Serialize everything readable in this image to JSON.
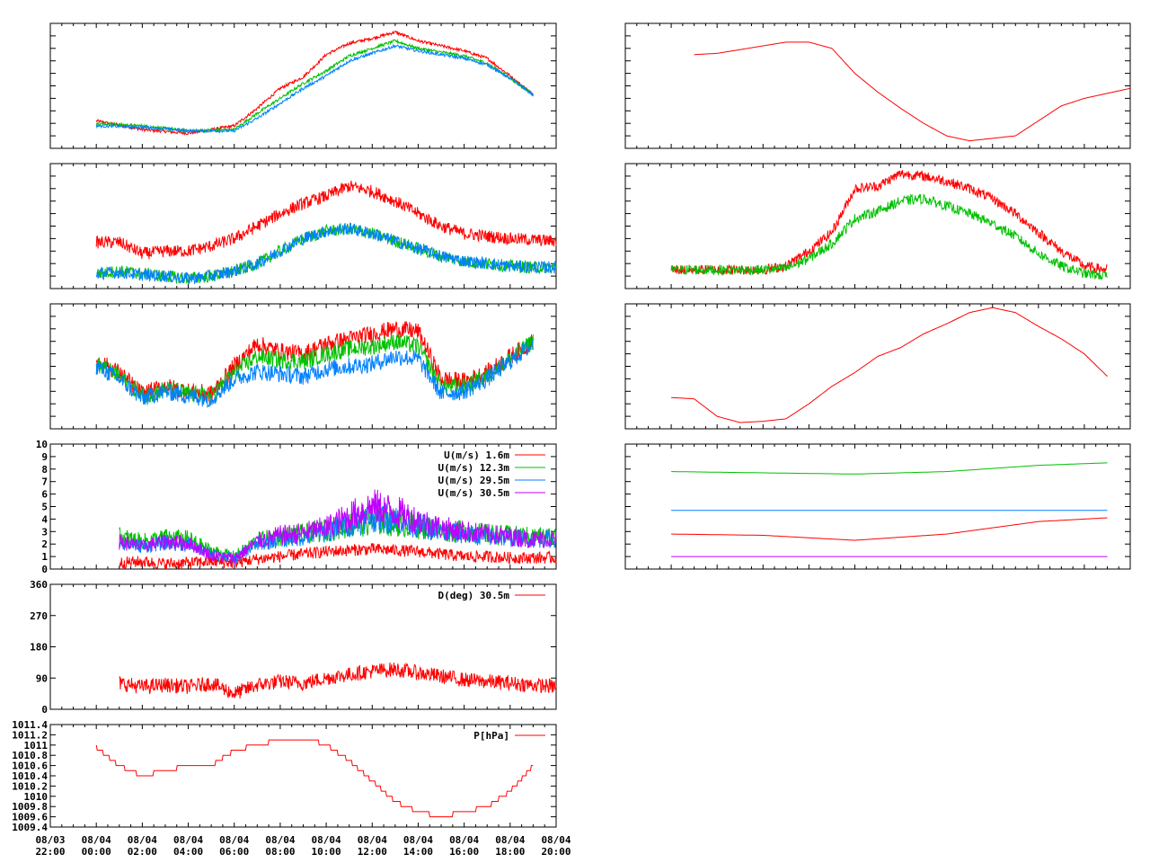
{
  "colors": {
    "red": "#ff0000",
    "green": "#00c000",
    "blue": "#0080ff",
    "purple": "#c000ff",
    "frame": "#000000",
    "background": "#ffffff"
  },
  "x_axis": {
    "type": "time",
    "start": "08/03 22:00",
    "end": "08/04 20:00",
    "tick_labels": [
      [
        "08/03",
        "22:00"
      ],
      [
        "08/04",
        "00:00"
      ],
      [
        "08/04",
        "02:00"
      ],
      [
        "08/04",
        "04:00"
      ],
      [
        "08/04",
        "06:00"
      ],
      [
        "08/04",
        "08:00"
      ],
      [
        "08/04",
        "10:00"
      ],
      [
        "08/04",
        "12:00"
      ],
      [
        "08/04",
        "14:00"
      ],
      [
        "08/04",
        "16:00"
      ],
      [
        "08/04",
        "18:00"
      ],
      [
        "08/04",
        "20:00"
      ]
    ]
  },
  "chart_data": [
    {
      "id": "left-1",
      "type": "line",
      "x_hours": [
        0,
        2,
        4,
        6,
        7,
        8,
        9,
        10,
        11,
        12,
        13,
        14,
        15,
        16,
        17,
        18,
        19
      ],
      "series": [
        {
          "color": "#ff0000",
          "values": [
            0.22,
            0.15,
            0.12,
            0.18,
            0.32,
            0.48,
            0.57,
            0.75,
            0.84,
            0.88,
            0.93,
            0.86,
            0.82,
            0.78,
            0.72,
            0.58,
            0.43
          ]
        },
        {
          "color": "#00c000",
          "values": [
            0.2,
            0.18,
            0.14,
            0.15,
            0.28,
            0.4,
            0.52,
            0.62,
            0.74,
            0.8,
            0.86,
            0.8,
            0.77,
            0.74,
            0.68,
            0.56,
            0.43
          ]
        },
        {
          "color": "#0080ff",
          "values": [
            0.18,
            0.17,
            0.14,
            0.14,
            0.24,
            0.36,
            0.48,
            0.58,
            0.7,
            0.76,
            0.82,
            0.78,
            0.75,
            0.72,
            0.67,
            0.56,
            0.43
          ]
        }
      ]
    },
    {
      "id": "left-2",
      "type": "line",
      "x_hours": [
        0,
        1,
        2,
        3,
        4,
        5,
        6,
        7,
        8,
        9,
        10,
        11,
        12,
        13,
        14,
        15,
        16,
        17,
        18,
        19,
        20
      ],
      "series": [
        {
          "color": "#ff0000",
          "values": [
            0.37,
            0.37,
            0.28,
            0.3,
            0.3,
            0.34,
            0.4,
            0.5,
            0.6,
            0.68,
            0.74,
            0.82,
            0.78,
            0.7,
            0.6,
            0.5,
            0.44,
            0.42,
            0.4,
            0.39,
            0.38
          ]
        },
        {
          "color": "#00c000",
          "values": [
            0.12,
            0.14,
            0.12,
            0.1,
            0.08,
            0.1,
            0.14,
            0.2,
            0.3,
            0.4,
            0.46,
            0.48,
            0.44,
            0.38,
            0.32,
            0.26,
            0.22,
            0.2,
            0.18,
            0.17,
            0.17
          ]
        },
        {
          "color": "#0080ff",
          "values": [
            0.12,
            0.13,
            0.11,
            0.1,
            0.08,
            0.1,
            0.14,
            0.2,
            0.3,
            0.4,
            0.46,
            0.48,
            0.44,
            0.38,
            0.32,
            0.26,
            0.22,
            0.2,
            0.18,
            0.17,
            0.17
          ]
        }
      ]
    },
    {
      "id": "left-3",
      "type": "line",
      "x_hours": [
        0,
        1,
        2,
        3,
        4,
        5,
        6,
        7,
        8,
        9,
        10,
        11,
        12,
        13,
        14,
        15,
        16,
        17,
        18,
        19
      ],
      "series": [
        {
          "color": "#ff0000",
          "values": [
            0.55,
            0.45,
            0.28,
            0.34,
            0.3,
            0.28,
            0.5,
            0.68,
            0.62,
            0.6,
            0.68,
            0.72,
            0.76,
            0.8,
            0.78,
            0.4,
            0.38,
            0.45,
            0.58,
            0.7
          ]
        },
        {
          "color": "#00c000",
          "values": [
            0.52,
            0.42,
            0.26,
            0.32,
            0.28,
            0.26,
            0.45,
            0.58,
            0.55,
            0.54,
            0.6,
            0.64,
            0.66,
            0.7,
            0.66,
            0.34,
            0.34,
            0.42,
            0.56,
            0.7
          ]
        },
        {
          "color": "#0080ff",
          "values": [
            0.5,
            0.4,
            0.24,
            0.3,
            0.26,
            0.24,
            0.4,
            0.46,
            0.44,
            0.42,
            0.48,
            0.5,
            0.52,
            0.58,
            0.56,
            0.28,
            0.3,
            0.4,
            0.54,
            0.68
          ]
        }
      ]
    },
    {
      "id": "left-4",
      "type": "line",
      "ylim": [
        0,
        10
      ],
      "y_ticks": [
        "0",
        "1",
        "2",
        "3",
        "4",
        "5",
        "6",
        "7",
        "8",
        "9",
        "10"
      ],
      "legend_position": "top-right",
      "x_hours": [
        1,
        2,
        3,
        4,
        5,
        6,
        7,
        8,
        9,
        10,
        11,
        12,
        13,
        14,
        15,
        16,
        17,
        18,
        19,
        20
      ],
      "series": [
        {
          "name": "U(m/s)  1.6m",
          "color": "#ff0000",
          "values": [
            0.5,
            0.6,
            0.4,
            0.5,
            0.6,
            0.5,
            0.8,
            1.0,
            1.2,
            1.4,
            1.5,
            1.6,
            1.5,
            1.4,
            1.2,
            1.0,
            1.0,
            0.9,
            0.9,
            0.9
          ]
        },
        {
          "name": "U(m/s) 12.3m",
          "color": "#00c000",
          "values": [
            2.6,
            2.2,
            2.5,
            2.4,
            1.5,
            1.0,
            2.3,
            2.6,
            2.8,
            3.1,
            3.5,
            3.8,
            3.7,
            3.4,
            3.1,
            3.0,
            2.8,
            2.7,
            2.6,
            2.6
          ]
        },
        {
          "name": "U(m/s) 29.5m",
          "color": "#0080ff",
          "values": [
            2.2,
            1.8,
            2.1,
            2.0,
            1.2,
            0.8,
            2.0,
            2.4,
            2.6,
            3.0,
            3.6,
            4.2,
            4.0,
            3.5,
            3.0,
            2.8,
            2.6,
            2.5,
            2.4,
            2.4
          ]
        },
        {
          "name": "U(m/s) 30.5m",
          "color": "#c000ff",
          "values": [
            2.2,
            1.8,
            2.2,
            2.1,
            1.1,
            0.8,
            2.2,
            2.7,
            2.9,
            3.3,
            4.2,
            5.0,
            4.6,
            3.9,
            3.3,
            3.0,
            2.8,
            2.6,
            2.4,
            2.4
          ]
        }
      ]
    },
    {
      "id": "left-5",
      "type": "line",
      "ylim": [
        0,
        360
      ],
      "y_ticks": [
        "0",
        "90",
        "180",
        "270",
        "360"
      ],
      "legend_position": "top-right",
      "x_hours": [
        1,
        2,
        3,
        4,
        5,
        6,
        7,
        8,
        9,
        10,
        11,
        12,
        13,
        14,
        15,
        16,
        17,
        18,
        19,
        20
      ],
      "series": [
        {
          "name": "D(deg)  30.5m",
          "color": "#ff0000",
          "values": [
            75,
            65,
            70,
            65,
            75,
            45,
            70,
            80,
            75,
            90,
            100,
            110,
            115,
            105,
            95,
            85,
            80,
            75,
            70,
            65
          ]
        }
      ]
    },
    {
      "id": "left-6",
      "type": "line",
      "ylim": [
        1009.4,
        1011.4
      ],
      "y_ticks": [
        "1009.4",
        "1009.6",
        "1009.8",
        "1010",
        "1010.2",
        "1010.4",
        "1010.6",
        "1010.8",
        "1011",
        "1011.2",
        "1011.4"
      ],
      "legend_position": "top-right",
      "x_hours": [
        0,
        1,
        2,
        3,
        4,
        5,
        6,
        7,
        8,
        9,
        10,
        11,
        12,
        13,
        14,
        15,
        16,
        17,
        18,
        19
      ],
      "series": [
        {
          "name": "P[hPa]",
          "color": "#ff0000",
          "values": [
            1010.95,
            1010.6,
            1010.4,
            1010.5,
            1010.6,
            1010.6,
            1010.9,
            1011.0,
            1011.1,
            1011.15,
            1011.0,
            1010.7,
            1010.3,
            1009.9,
            1009.7,
            1009.6,
            1009.7,
            1009.8,
            1010.1,
            1010.6
          ]
        }
      ]
    },
    {
      "id": "right-1",
      "type": "line",
      "x_hours": [
        1,
        2,
        3,
        4,
        5,
        6,
        7,
        8,
        9,
        10,
        11,
        12,
        13,
        14,
        15,
        16,
        17,
        18,
        19,
        20
      ],
      "series": [
        {
          "color": "#ff0000",
          "values": [
            0.75,
            0.76,
            0.79,
            0.82,
            0.85,
            0.85,
            0.8,
            0.6,
            0.45,
            0.32,
            0.2,
            0.1,
            0.06,
            0.08,
            0.1,
            0.22,
            0.34,
            0.4,
            0.44,
            0.48
          ]
        }
      ]
    },
    {
      "id": "right-2",
      "type": "line",
      "x_hours": [
        0,
        2,
        4,
        5,
        6,
        7,
        8,
        9,
        10,
        11,
        12,
        13,
        14,
        15,
        16,
        17,
        18,
        19
      ],
      "series": [
        {
          "color": "#ff0000",
          "values": [
            0.15,
            0.15,
            0.15,
            0.18,
            0.3,
            0.45,
            0.8,
            0.82,
            0.92,
            0.9,
            0.86,
            0.8,
            0.72,
            0.6,
            0.45,
            0.3,
            0.18,
            0.15
          ]
        },
        {
          "color": "#00c000",
          "values": [
            0.15,
            0.15,
            0.15,
            0.16,
            0.24,
            0.36,
            0.56,
            0.62,
            0.7,
            0.72,
            0.66,
            0.6,
            0.52,
            0.42,
            0.28,
            0.18,
            0.12,
            0.1
          ]
        }
      ]
    },
    {
      "id": "right-3",
      "type": "line",
      "x_hours": [
        0,
        1,
        2,
        3,
        4,
        5,
        6,
        7,
        8,
        9,
        10,
        11,
        12,
        13,
        14,
        15,
        16,
        17,
        18,
        19
      ],
      "series": [
        {
          "color": "#ff0000",
          "values": [
            0.25,
            0.24,
            0.1,
            0.05,
            0.06,
            0.08,
            0.2,
            0.34,
            0.45,
            0.58,
            0.65,
            0.76,
            0.84,
            0.93,
            0.97,
            0.93,
            0.82,
            0.72,
            0.6,
            0.42
          ]
        }
      ]
    },
    {
      "id": "right-4",
      "type": "line",
      "x_hours": [
        0,
        4,
        8,
        12,
        16,
        19
      ],
      "series": [
        {
          "color": "#00c000",
          "values": [
            0.78,
            0.77,
            0.76,
            0.78,
            0.83,
            0.85
          ]
        },
        {
          "color": "#0080ff",
          "values": [
            0.47,
            0.47,
            0.47,
            0.47,
            0.47,
            0.47
          ]
        },
        {
          "color": "#ff0000",
          "values": [
            0.28,
            0.27,
            0.23,
            0.28,
            0.38,
            0.41
          ]
        },
        {
          "color": "#c000ff",
          "values": [
            0.1,
            0.1,
            0.1,
            0.1,
            0.1,
            0.1
          ]
        }
      ]
    }
  ]
}
